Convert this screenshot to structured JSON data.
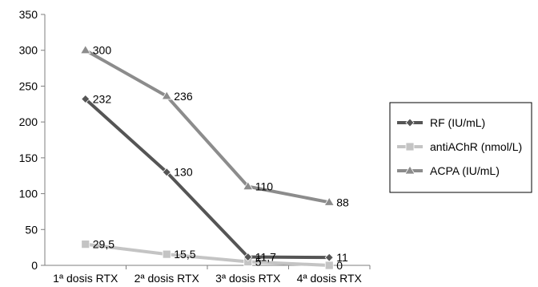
{
  "chart_data": {
    "type": "line",
    "categories": [
      "1ª dosis RTX",
      "2ª dosis RTX",
      "3ª dosis RTX",
      "4ª dosis RTX"
    ],
    "ylim": [
      0,
      350
    ],
    "yticks": [
      "0",
      "50",
      "100",
      "150",
      "200",
      "250",
      "300",
      "350"
    ],
    "grid": false,
    "legend_position": "right",
    "series": [
      {
        "name": "RF (IU/mL)",
        "values": [
          232,
          130,
          11.7,
          11
        ],
        "labels": [
          "232",
          "130",
          "11,7",
          "11"
        ],
        "color": "#555555",
        "marker": "diamond"
      },
      {
        "name": "antiAChR (nmol/L)",
        "values": [
          29.5,
          15.5,
          5,
          0
        ],
        "labels": [
          "29,5",
          "15,5",
          "5",
          "0"
        ],
        "color": "#c4c4c4",
        "marker": "square"
      },
      {
        "name": "ACPA (IU/mL)",
        "values": [
          300,
          236,
          110,
          88
        ],
        "labels": [
          "300",
          "236",
          "110",
          "88"
        ],
        "color": "#8c8c8c",
        "marker": "triangle"
      }
    ]
  }
}
